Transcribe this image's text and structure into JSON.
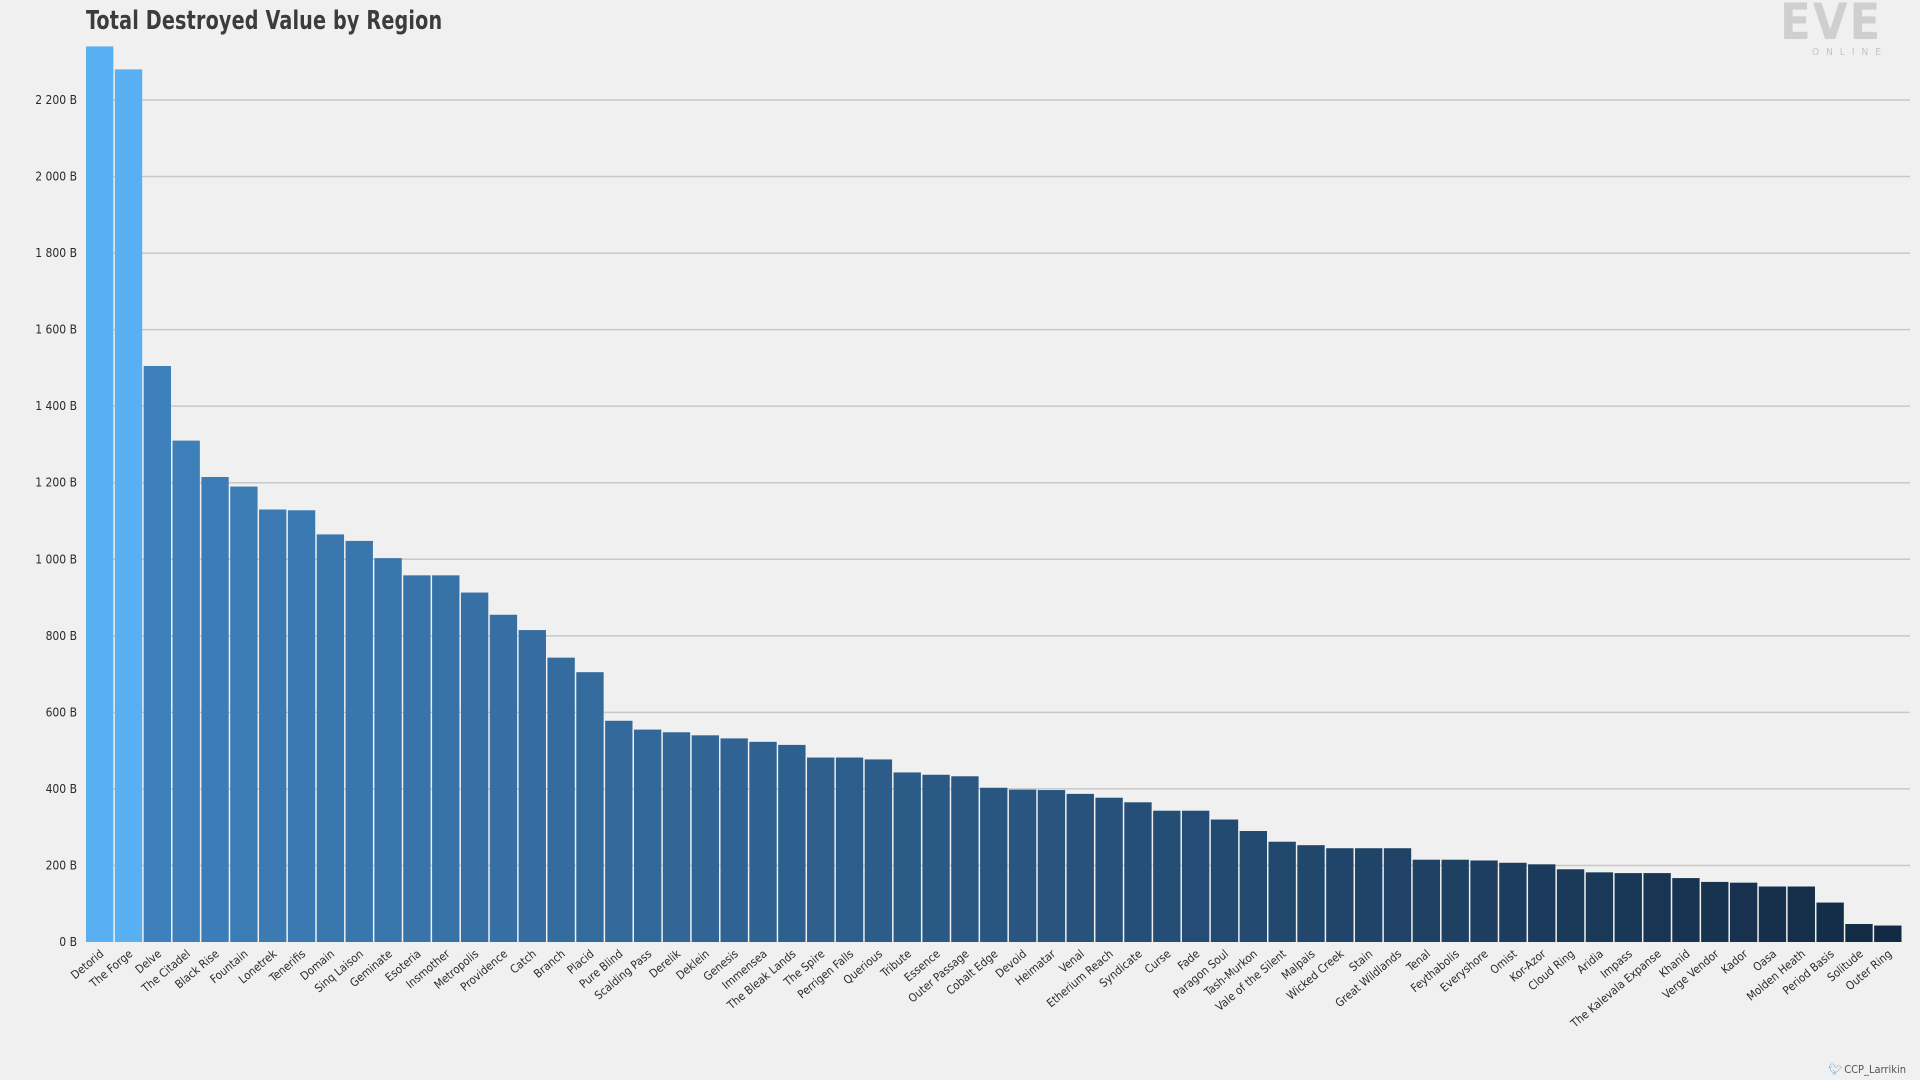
{
  "chart_data": {
    "type": "bar",
    "title": "Total Destroyed Value by Region",
    "xlabel": "",
    "ylabel": "",
    "ylim": [
      0,
      2340
    ],
    "yticks": [
      0,
      200,
      400,
      600,
      800,
      1000,
      1200,
      1400,
      1600,
      1800,
      2000,
      2200
    ],
    "ytick_labels": [
      "0 B",
      "200 B",
      "400 B",
      "600 B",
      "800 B",
      "1 000 B",
      "1 200 B",
      "1 400 B",
      "1 600 B",
      "1 800 B",
      "2 000 B",
      "2 200 B"
    ],
    "grid": "horizontal",
    "categories": [
      "Detorid",
      "The Forge",
      "Delve",
      "The Citadel",
      "Black Rise",
      "Fountain",
      "Lonetrek",
      "Tenerifis",
      "Domain",
      "Sinq Laison",
      "Geminate",
      "Esoteria",
      "Insmother",
      "Metropolis",
      "Providence",
      "Catch",
      "Branch",
      "Placid",
      "Pure Blind",
      "Scalding Pass",
      "Derelik",
      "Deklein",
      "Genesis",
      "Immensea",
      "The Bleak Lands",
      "The Spire",
      "Perrigen Falls",
      "Querious",
      "Tribute",
      "Essence",
      "Outer Passage",
      "Cobalt Edge",
      "Devoid",
      "Heimatar",
      "Venal",
      "Etherium Reach",
      "Syndicate",
      "Curse",
      "Fade",
      "Paragon Soul",
      "Tash-Murkon",
      "Vale of the Silent",
      "Malpais",
      "Wicked Creek",
      "Stain",
      "Great Wildlands",
      "Tenal",
      "Feythabolis",
      "Everyshore",
      "Omist",
      "Kor-Azor",
      "Cloud Ring",
      "Aridia",
      "Impass",
      "The Kalevala Expanse",
      "Khanid",
      "Verge Vendor",
      "Kador",
      "Oasa",
      "Molden Heath",
      "Period Basis",
      "Solitude",
      "Outer Ring"
    ],
    "values": [
      2340,
      2280,
      1505,
      1310,
      1215,
      1190,
      1130,
      1128,
      1065,
      1048,
      1003,
      958,
      958,
      913,
      855,
      815,
      743,
      705,
      578,
      555,
      548,
      540,
      532,
      523,
      515,
      482,
      482,
      477,
      443,
      437,
      433,
      403,
      398,
      397,
      387,
      377,
      365,
      343,
      343,
      320,
      290,
      262,
      253,
      245,
      245,
      245,
      215,
      215,
      213,
      207,
      203,
      190,
      182,
      180,
      180,
      167,
      157,
      155,
      145,
      145,
      103,
      47,
      43
    ],
    "colors": {
      "highlight": "#58aff2",
      "start": "#3e80bb",
      "end": "#132a44",
      "grid": "#c8c8c8",
      "axis_text": "#2a2a2a"
    }
  },
  "branding": {
    "logo_text": "EVE",
    "logo_subtext": "ONLINE",
    "credit_text": "CCP_Larrikin",
    "credit_icon": "bird-icon"
  }
}
